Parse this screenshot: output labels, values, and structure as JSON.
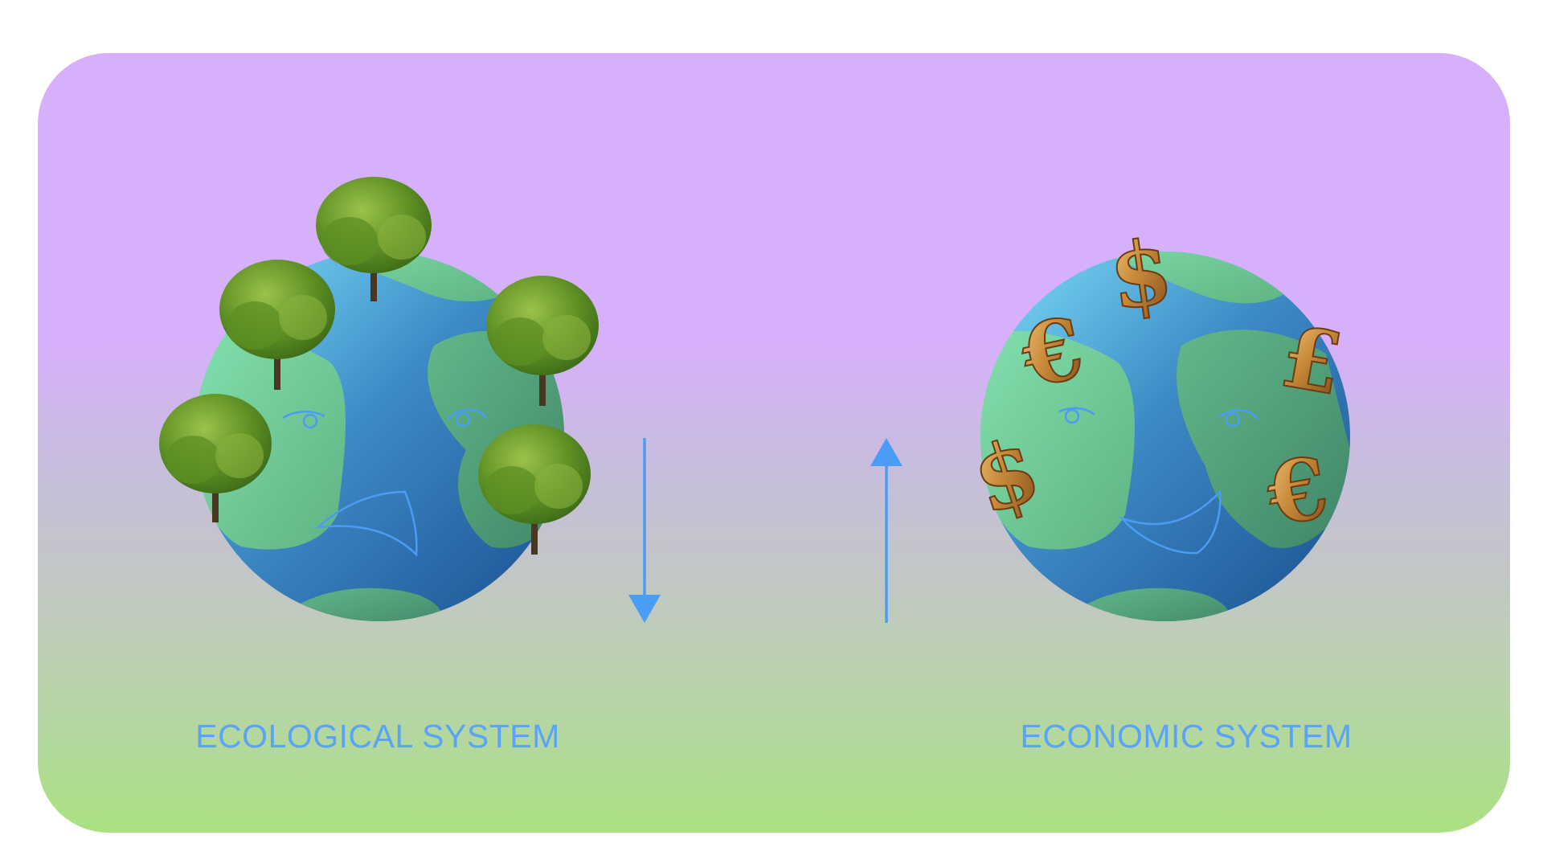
{
  "diagram": {
    "left": {
      "label": "ECOLOGICAL SYSTEM",
      "mood": "sad",
      "decorations": [
        "tree-icon",
        "tree-icon",
        "tree-icon",
        "tree-icon",
        "tree-icon"
      ],
      "trend": "down"
    },
    "right": {
      "label": "ECONOMIC SYSTEM",
      "mood": "happy",
      "decorations": [
        "$",
        "€",
        "£",
        "$",
        "€"
      ],
      "trend": "up"
    }
  },
  "colors": {
    "accent_blue": "#4a9cf5",
    "label_blue": "#5aa4f7",
    "land_green": "#74d9a4",
    "land_dark_green": "#5aa57f",
    "ocean_blue": "#3277b8",
    "ocean_light": "#6ed0f5",
    "gold": "#c98a3a",
    "panel_top": "#d7b0fb",
    "panel_bottom": "#aae180"
  }
}
